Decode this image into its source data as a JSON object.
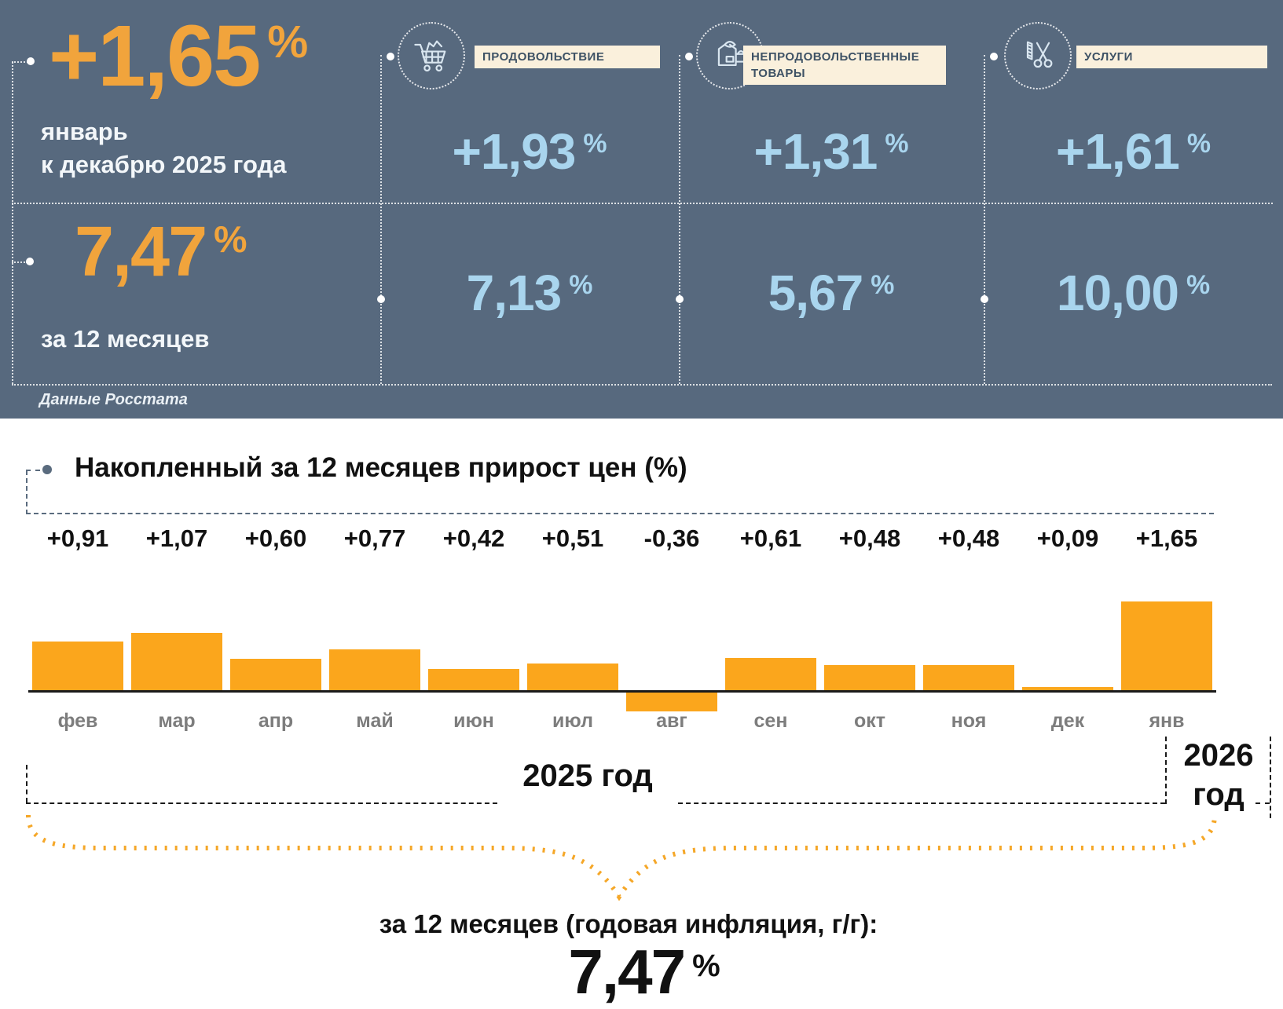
{
  "colors": {
    "header_bg": "#57697E",
    "orange": "#F1A43C",
    "bar_orange": "#FBA61C",
    "light_blue": "#A9D5EE",
    "cream": "#FAF0DC"
  },
  "header": {
    "month_change": {
      "value": "+1,65",
      "unit": "%",
      "period_line1": "январь",
      "period_line2": "к декабрю 2025 года"
    },
    "annual_change": {
      "value": "7,47",
      "unit": "%",
      "period": "за 12 месяцев"
    },
    "source": "Данные Росстата",
    "categories": [
      {
        "label": "ПРОДОВОЛЬСТВИЕ",
        "icon": "shopping-cart-icon",
        "month_value": "+1,93",
        "annual_value": "7,13",
        "unit": "%"
      },
      {
        "label": "НЕПРОДОВОЛЬСТВЕННЫЕ ТОВАРЫ",
        "icon": "clothing-icon",
        "month_value": "+1,31",
        "annual_value": "5,67",
        "unit": "%"
      },
      {
        "label": "УСЛУГИ",
        "icon": "scissors-comb-icon",
        "month_value": "+1,61",
        "annual_value": "10,00",
        "unit": "%"
      }
    ]
  },
  "chart": {
    "title": "Накопленный за 12 месяцев прирост цен (%)"
  },
  "chart_data": {
    "type": "bar",
    "categories": [
      "фев",
      "мар",
      "апр",
      "май",
      "июн",
      "июл",
      "авг",
      "сен",
      "окт",
      "ноя",
      "дек",
      "янв"
    ],
    "values": [
      0.91,
      1.07,
      0.6,
      0.77,
      0.42,
      0.51,
      -0.36,
      0.61,
      0.48,
      0.48,
      0.09,
      1.65
    ],
    "bar_labels": [
      "+0,91",
      "+1,07",
      "+0,60",
      "+0,77",
      "+0,42",
      "+0,51",
      "-0,36",
      "+0,61",
      "+0,48",
      "+0,48",
      "+0,09",
      "+1,65"
    ],
    "title": "Накопленный за 12 месяцев прирост цен (%)",
    "xlabel": "",
    "ylabel": "",
    "ylim": [
      -0.5,
      1.8
    ],
    "bar_color": "#FBA61C",
    "grid": false,
    "legend": false
  },
  "timeline": {
    "year_left": "2025 год",
    "year_right_line1": "2026",
    "year_right_line2": "год"
  },
  "summary": {
    "caption": "за 12 месяцев (годовая инфляция, г/г):",
    "value": "7,47",
    "unit": "%"
  }
}
